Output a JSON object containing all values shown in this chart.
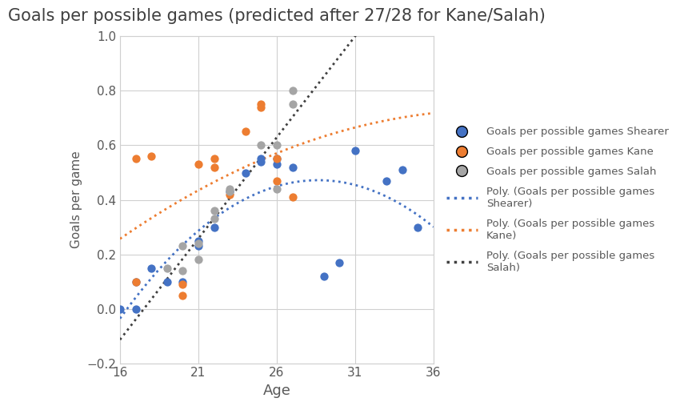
{
  "title": "Goals per possible games (predicted after 27/28 for Kane/Salah)",
  "xlabel": "Age",
  "ylabel": "Goals per game",
  "xlim": [
    16,
    36
  ],
  "ylim": [
    -0.2,
    1.0
  ],
  "xticks": [
    16,
    21,
    26,
    31,
    36
  ],
  "yticks": [
    -0.2,
    0.0,
    0.2,
    0.4,
    0.6,
    0.8,
    1.0
  ],
  "shearer_age": [
    16,
    17,
    17,
    18,
    19,
    20,
    21,
    21,
    22,
    23,
    24,
    25,
    25,
    26,
    26,
    27,
    29,
    30,
    31,
    33,
    34,
    35
  ],
  "shearer_goals": [
    0.0,
    0.0,
    0.1,
    0.15,
    0.1,
    0.1,
    0.23,
    0.25,
    0.3,
    0.43,
    0.5,
    0.54,
    0.55,
    0.55,
    0.53,
    0.52,
    0.12,
    0.17,
    0.58,
    0.47,
    0.51,
    0.3
  ],
  "kane_age": [
    17,
    17,
    18,
    20,
    20,
    21,
    22,
    22,
    23,
    24,
    25,
    25,
    26,
    26,
    27
  ],
  "kane_goals": [
    0.1,
    0.55,
    0.56,
    0.05,
    0.09,
    0.53,
    0.55,
    0.52,
    0.42,
    0.65,
    0.75,
    0.74,
    0.55,
    0.47,
    0.41
  ],
  "salah_age": [
    19,
    20,
    20,
    21,
    21,
    22,
    22,
    23,
    23,
    25,
    26,
    26,
    27,
    27
  ],
  "salah_goals": [
    0.15,
    0.14,
    0.23,
    0.18,
    0.24,
    0.33,
    0.36,
    0.43,
    0.44,
    0.6,
    0.44,
    0.6,
    0.8,
    0.75
  ],
  "shearer_color": "#4472C4",
  "kane_color": "#ED7D31",
  "salah_color": "#A5A5A5",
  "salah_trend_color": "#404040",
  "background_color": "#FFFFFF",
  "plot_bg_color": "#FFFFFF",
  "text_color": "#595959",
  "grid_color": "#D0D0D0",
  "title_color": "#404040",
  "legend_text_color": "#595959"
}
